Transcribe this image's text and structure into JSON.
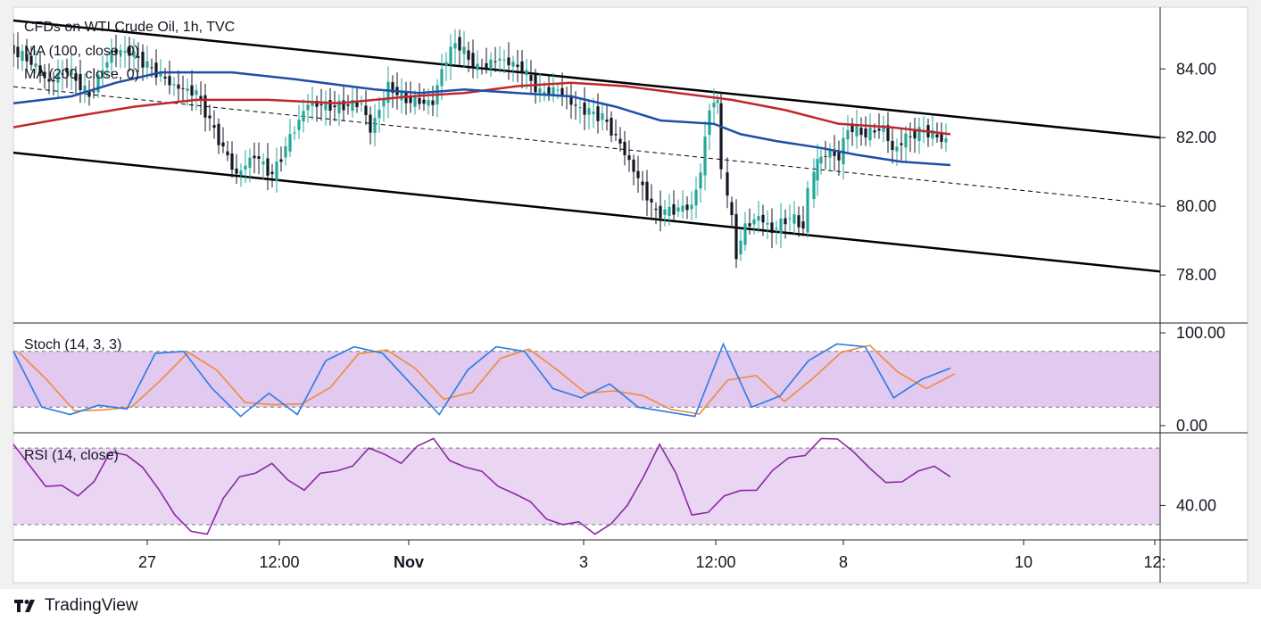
{
  "chart_data": [
    {
      "type": "candlestick",
      "panel": "price",
      "title": "CFDs on WTI Crude Oil, 1h, TVC",
      "indicators": [
        {
          "label": "MA (100, close, 0)",
          "color": "#1f4ea8"
        },
        {
          "label": "MA (200, close, 0)",
          "color": "#c0272d"
        }
      ],
      "ylim": [
        76.6,
        85.8
      ],
      "y_ticks": [
        "84.00",
        "82.00",
        "80.00",
        "78.00"
      ],
      "y_tick_values": [
        84,
        82,
        80,
        78
      ],
      "x_ticks": [
        "27",
        "12:00",
        "Nov",
        "3",
        "12:00",
        "8",
        "10",
        "12:"
      ],
      "close_approx": [
        {
          "x": "start",
          "y": 84.6
        },
        {
          "x": "27",
          "y": 84.3
        },
        {
          "x": "12:00",
          "y": 81.6
        },
        {
          "x": "Nov",
          "y": 83.0
        },
        {
          "x": "Nov+",
          "y": 84.6
        },
        {
          "x": "3",
          "y": 83.4
        },
        {
          "x": "3+",
          "y": 80.0
        },
        {
          "x": "12:00",
          "y": 83.0
        },
        {
          "x": "12:00+",
          "y": 79.2
        },
        {
          "x": "8",
          "y": 81.6
        },
        {
          "x": "8+",
          "y": 82.2
        },
        {
          "x": "end",
          "y": 82.0
        }
      ],
      "channel": {
        "upper_line": [
          [
            0,
            85.45
          ],
          [
            1300,
            82.0
          ]
        ],
        "lower_line": [
          [
            0,
            81.6
          ],
          [
            1300,
            78.1
          ]
        ],
        "mid_dashed": true
      },
      "colors": {
        "up": "#26a69a",
        "down": "#131722",
        "ma100": "#1f4ea8",
        "ma200": "#c0272d"
      }
    },
    {
      "type": "line",
      "panel": "stochastic",
      "label": "Stoch (14, 3, 3)",
      "ylim": [
        0,
        100
      ],
      "y_ticks": [
        "100.00",
        "0.00"
      ],
      "y_tick_values": [
        100,
        0
      ],
      "bands": [
        80,
        20
      ],
      "k_approx": [
        80,
        20,
        12,
        22,
        18,
        78,
        80,
        40,
        10,
        35,
        12,
        70,
        85,
        78,
        45,
        12,
        60,
        85,
        80,
        40,
        30,
        45,
        20,
        15,
        10,
        88,
        20,
        32,
        70,
        88,
        85,
        30,
        50,
        62
      ],
      "colors": {
        "k": "#2b7be4",
        "d": "#f08a3a",
        "band_fill": "#e1c9f0"
      }
    },
    {
      "type": "line",
      "panel": "rsi",
      "label": "RSI (14, close)",
      "ylim": [
        22,
        78
      ],
      "y_ticks": [
        "40.00"
      ],
      "y_tick_values": [
        40
      ],
      "bands": [
        70,
        30
      ],
      "values_approx": [
        72,
        50,
        45,
        68,
        60,
        35,
        25,
        55,
        62,
        48,
        58,
        70,
        62,
        75,
        60,
        50,
        42,
        30,
        25,
        40,
        72,
        35,
        45,
        48,
        65,
        75,
        68,
        52,
        58,
        55
      ],
      "colors": {
        "line": "#8a2aa0",
        "band_fill": "#ead6f3"
      }
    }
  ],
  "branding": {
    "name": "TradingView"
  }
}
